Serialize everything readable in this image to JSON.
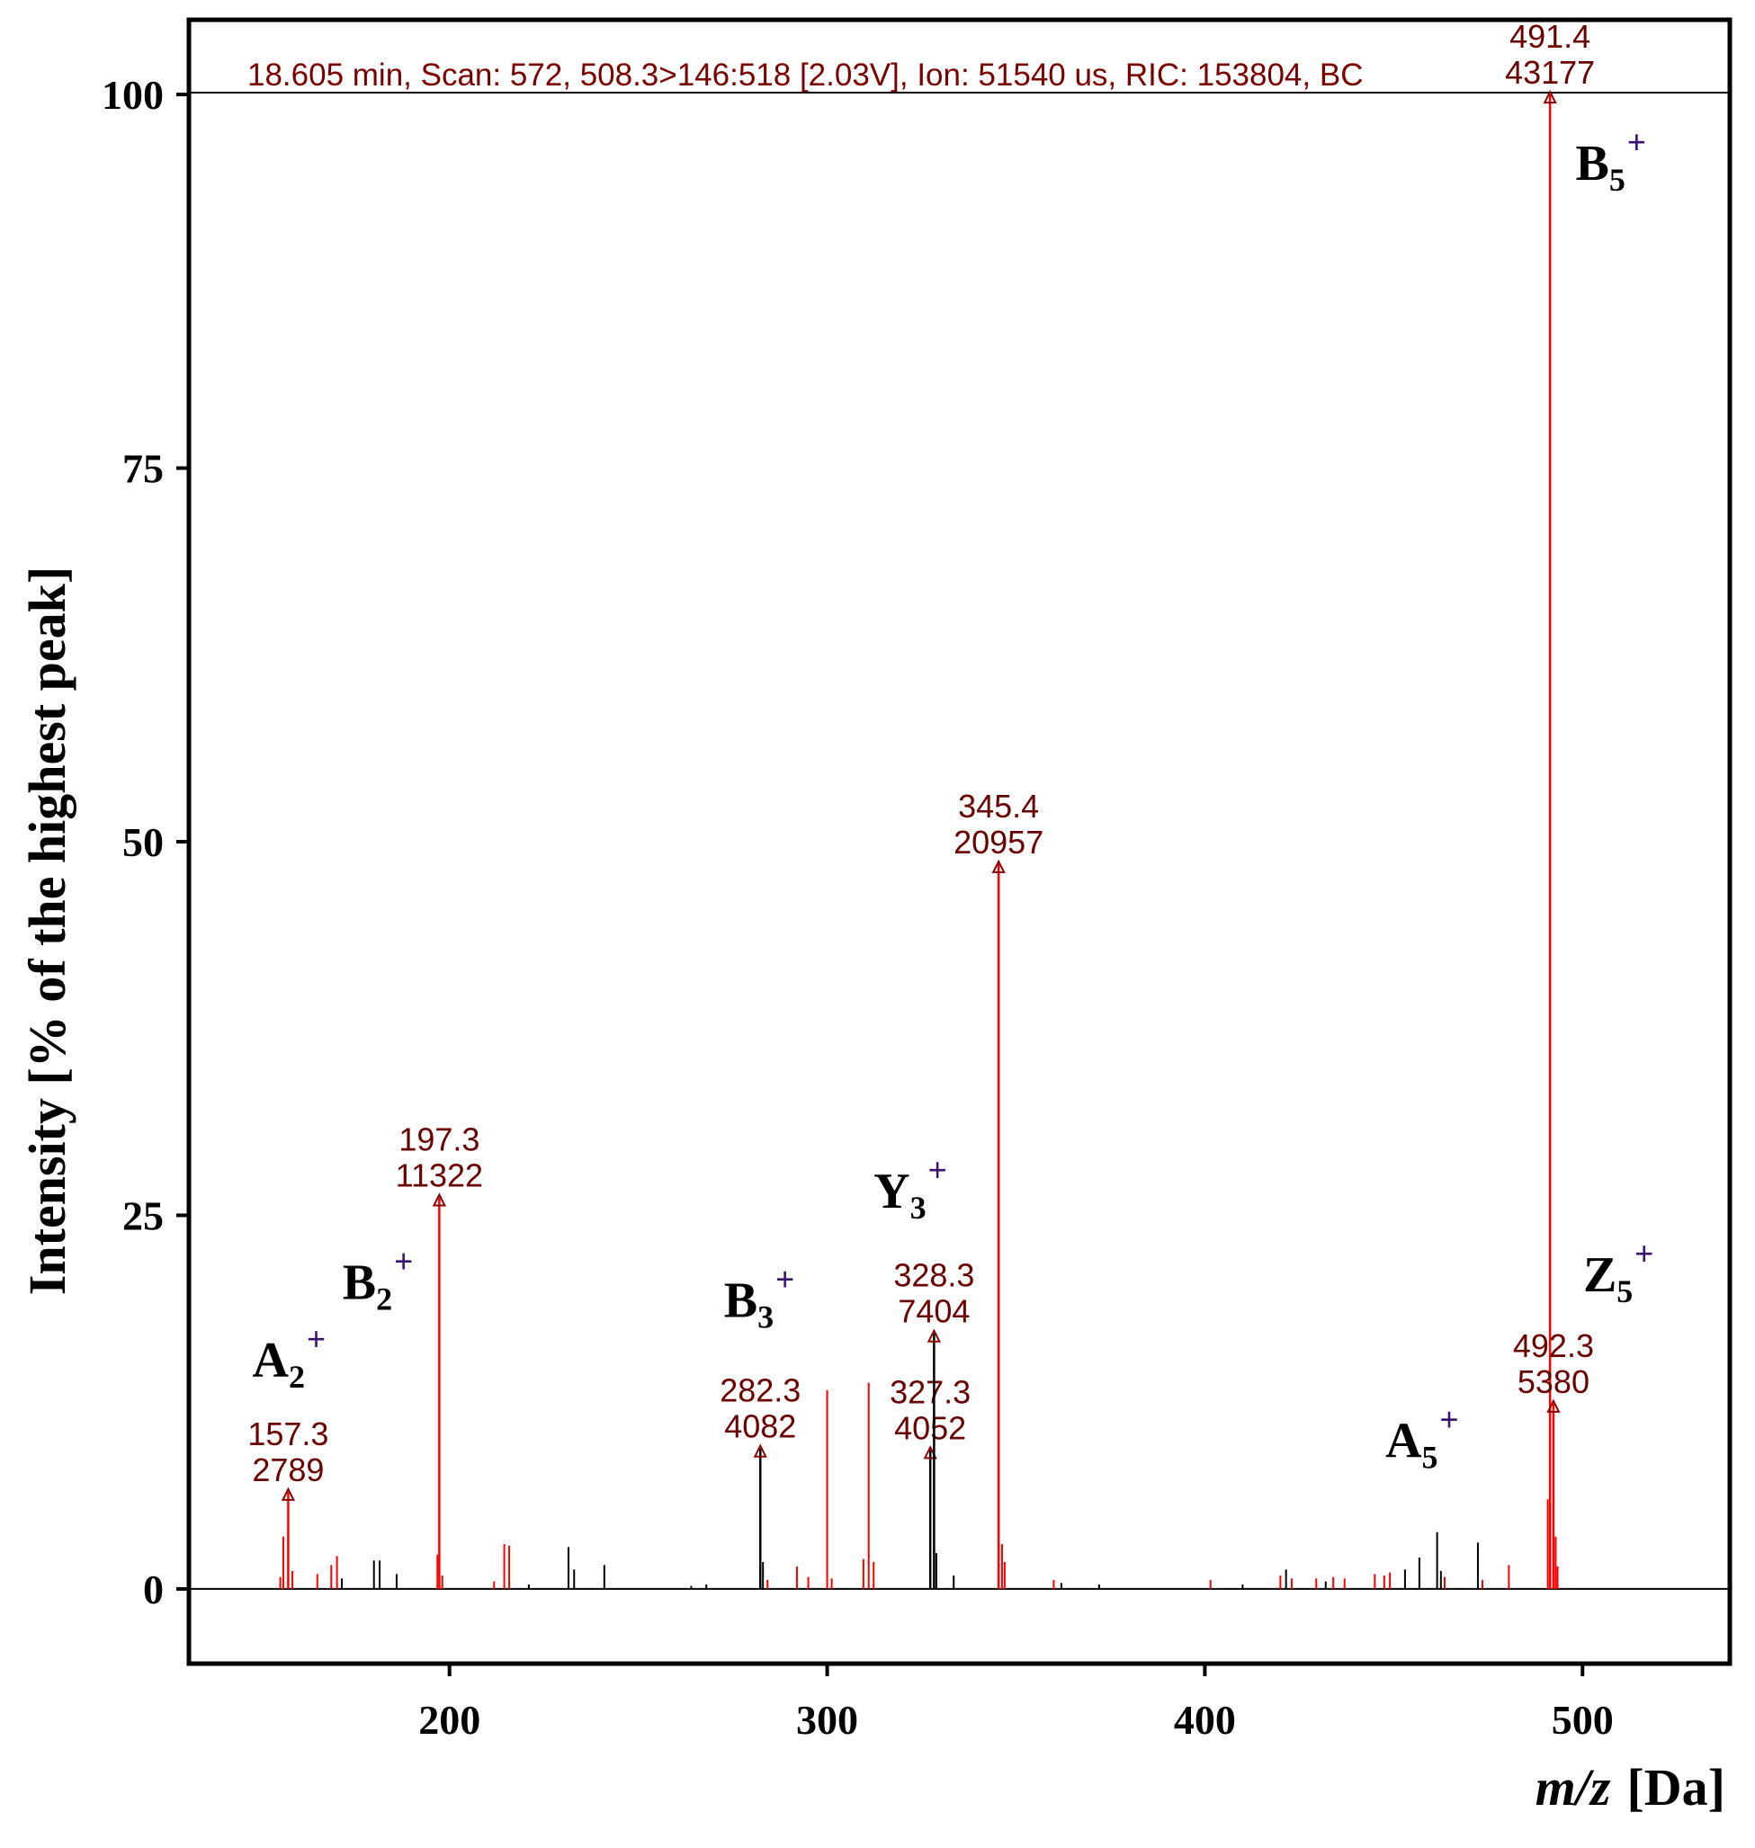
{
  "chart_data": {
    "type": "bar",
    "header": "18.605 min, Scan: 572, 508.3>146:518 [2.03V], Ion: 51540 us, RIC: 153804, BC",
    "xlabel_italic": "m/z",
    "xlabel_unit": "[Da]",
    "ylabel": "Intensity [% of the highest peak]",
    "xlim": [
      131,
      539
    ],
    "ylim": [
      -5,
      105
    ],
    "xticks": [
      200,
      300,
      400,
      500
    ],
    "yticks": [
      0,
      25,
      50,
      75,
      100
    ],
    "colors": {
      "red": "#ff0000",
      "black": "#000000",
      "label": "#6b0000",
      "ion": "#000000",
      "plus": "#3a1070"
    },
    "labeled_peaks": [
      {
        "mz": 157.3,
        "rel": 6.5,
        "intensity_label": "2789",
        "mz_label": "157.3",
        "color": "red"
      },
      {
        "mz": 197.3,
        "rel": 26.2,
        "intensity_label": "11322",
        "mz_label": "197.3",
        "color": "red"
      },
      {
        "mz": 282.3,
        "rel": 9.4,
        "intensity_label": "4082",
        "mz_label": "282.3",
        "color": "black"
      },
      {
        "mz": 327.3,
        "rel": 9.3,
        "intensity_label": "4052",
        "mz_label": "327.3",
        "color": "black"
      },
      {
        "mz": 328.3,
        "rel": 17.1,
        "intensity_label": "7404",
        "mz_label": "328.3",
        "color": "black"
      },
      {
        "mz": 345.4,
        "rel": 48.5,
        "intensity_label": "20957",
        "mz_label": "345.4",
        "color": "red"
      },
      {
        "mz": 491.4,
        "rel": 100,
        "intensity_label": "43177",
        "mz_label": "491.4",
        "color": "red"
      },
      {
        "mz": 492.3,
        "rel": 12.4,
        "intensity_label": "5380",
        "mz_label": "492.3",
        "color": "red"
      }
    ],
    "minor_peaks": [
      {
        "mz": 155.2,
        "rel": 0.8,
        "color": "red"
      },
      {
        "mz": 156.0,
        "rel": 3.5,
        "color": "red"
      },
      {
        "mz": 158.4,
        "rel": 1.2,
        "color": "red"
      },
      {
        "mz": 165.0,
        "rel": 1.0,
        "color": "red"
      },
      {
        "mz": 168.7,
        "rel": 1.6,
        "color": "red"
      },
      {
        "mz": 170.2,
        "rel": 2.2,
        "color": "red"
      },
      {
        "mz": 171.5,
        "rel": 0.7,
        "color": "black"
      },
      {
        "mz": 180.0,
        "rel": 1.9,
        "color": "black"
      },
      {
        "mz": 181.5,
        "rel": 1.9,
        "color": "black"
      },
      {
        "mz": 186.0,
        "rel": 1.0,
        "color": "black"
      },
      {
        "mz": 196.8,
        "rel": 2.3,
        "color": "red"
      },
      {
        "mz": 198.1,
        "rel": 0.9,
        "color": "red"
      },
      {
        "mz": 211.8,
        "rel": 0.5,
        "color": "red"
      },
      {
        "mz": 214.5,
        "rel": 3.0,
        "color": "red"
      },
      {
        "mz": 215.8,
        "rel": 2.9,
        "color": "red"
      },
      {
        "mz": 221.0,
        "rel": 0.3,
        "color": "black"
      },
      {
        "mz": 231.5,
        "rel": 2.8,
        "color": "black"
      },
      {
        "mz": 233.0,
        "rel": 1.3,
        "color": "black"
      },
      {
        "mz": 241.0,
        "rel": 1.6,
        "color": "black"
      },
      {
        "mz": 264.0,
        "rel": 0.2,
        "color": "black"
      },
      {
        "mz": 268.0,
        "rel": 0.3,
        "color": "black"
      },
      {
        "mz": 283.0,
        "rel": 1.8,
        "color": "black"
      },
      {
        "mz": 284.2,
        "rel": 0.6,
        "color": "red"
      },
      {
        "mz": 292.0,
        "rel": 1.5,
        "color": "red"
      },
      {
        "mz": 295.0,
        "rel": 0.8,
        "color": "red"
      },
      {
        "mz": 300.0,
        "rel": 13.3,
        "color": "red"
      },
      {
        "mz": 301.2,
        "rel": 0.7,
        "color": "red"
      },
      {
        "mz": 309.6,
        "rel": 2.0,
        "color": "red"
      },
      {
        "mz": 311.0,
        "rel": 13.8,
        "color": "red"
      },
      {
        "mz": 312.3,
        "rel": 1.8,
        "color": "red"
      },
      {
        "mz": 328.9,
        "rel": 2.4,
        "color": "black"
      },
      {
        "mz": 333.5,
        "rel": 0.9,
        "color": "black"
      },
      {
        "mz": 346.3,
        "rel": 3.0,
        "color": "red"
      },
      {
        "mz": 347.0,
        "rel": 1.8,
        "color": "red"
      },
      {
        "mz": 360.0,
        "rel": 0.6,
        "color": "red"
      },
      {
        "mz": 362.0,
        "rel": 0.4,
        "color": "black"
      },
      {
        "mz": 372.0,
        "rel": 0.3,
        "color": "black"
      },
      {
        "mz": 401.5,
        "rel": 0.6,
        "color": "red"
      },
      {
        "mz": 410.0,
        "rel": 0.3,
        "color": "black"
      },
      {
        "mz": 420.0,
        "rel": 0.9,
        "color": "red"
      },
      {
        "mz": 421.5,
        "rel": 1.3,
        "color": "black"
      },
      {
        "mz": 423.0,
        "rel": 0.7,
        "color": "red"
      },
      {
        "mz": 429.5,
        "rel": 0.7,
        "color": "red"
      },
      {
        "mz": 432.0,
        "rel": 0.5,
        "color": "black"
      },
      {
        "mz": 434.0,
        "rel": 0.8,
        "color": "red"
      },
      {
        "mz": 437.0,
        "rel": 0.7,
        "color": "red"
      },
      {
        "mz": 445.0,
        "rel": 1.0,
        "color": "red"
      },
      {
        "mz": 447.5,
        "rel": 0.9,
        "color": "red"
      },
      {
        "mz": 449.0,
        "rel": 1.1,
        "color": "red"
      },
      {
        "mz": 453.0,
        "rel": 1.3,
        "color": "black"
      },
      {
        "mz": 456.8,
        "rel": 2.1,
        "color": "black"
      },
      {
        "mz": 461.5,
        "rel": 3.8,
        "color": "black"
      },
      {
        "mz": 462.5,
        "rel": 1.2,
        "color": "black"
      },
      {
        "mz": 463.5,
        "rel": 0.8,
        "color": "red"
      },
      {
        "mz": 472.3,
        "rel": 3.1,
        "color": "black"
      },
      {
        "mz": 473.5,
        "rel": 0.6,
        "color": "red"
      },
      {
        "mz": 480.5,
        "rel": 1.6,
        "color": "red"
      },
      {
        "mz": 490.8,
        "rel": 6.0,
        "color": "red"
      },
      {
        "mz": 492.9,
        "rel": 3.5,
        "color": "red"
      },
      {
        "mz": 493.4,
        "rel": 1.5,
        "color": "red"
      }
    ],
    "ion_annotations": [
      {
        "main": "A",
        "sub": "2",
        "sup": "+",
        "mz": 157.5,
        "rel": 14.2
      },
      {
        "main": "B",
        "sub": "2",
        "sup": "+",
        "mz": 181.0,
        "rel": 19.4
      },
      {
        "main": "B",
        "sub": "3",
        "sup": "+",
        "mz": 282.0,
        "rel": 18.2
      },
      {
        "main": "Y",
        "sub": "3",
        "sup": "+",
        "mz": 322.0,
        "rel": 25.5
      },
      {
        "main": "A",
        "sub": "5",
        "sup": "+",
        "mz": 457.5,
        "rel": 8.8
      },
      {
        "main": "B",
        "sub": "5",
        "sup": "+",
        "mz": 507.5,
        "rel": 94.3
      },
      {
        "main": "Z",
        "sub": "5",
        "sup": "+",
        "mz": 509.5,
        "rel": 19.9
      }
    ]
  }
}
